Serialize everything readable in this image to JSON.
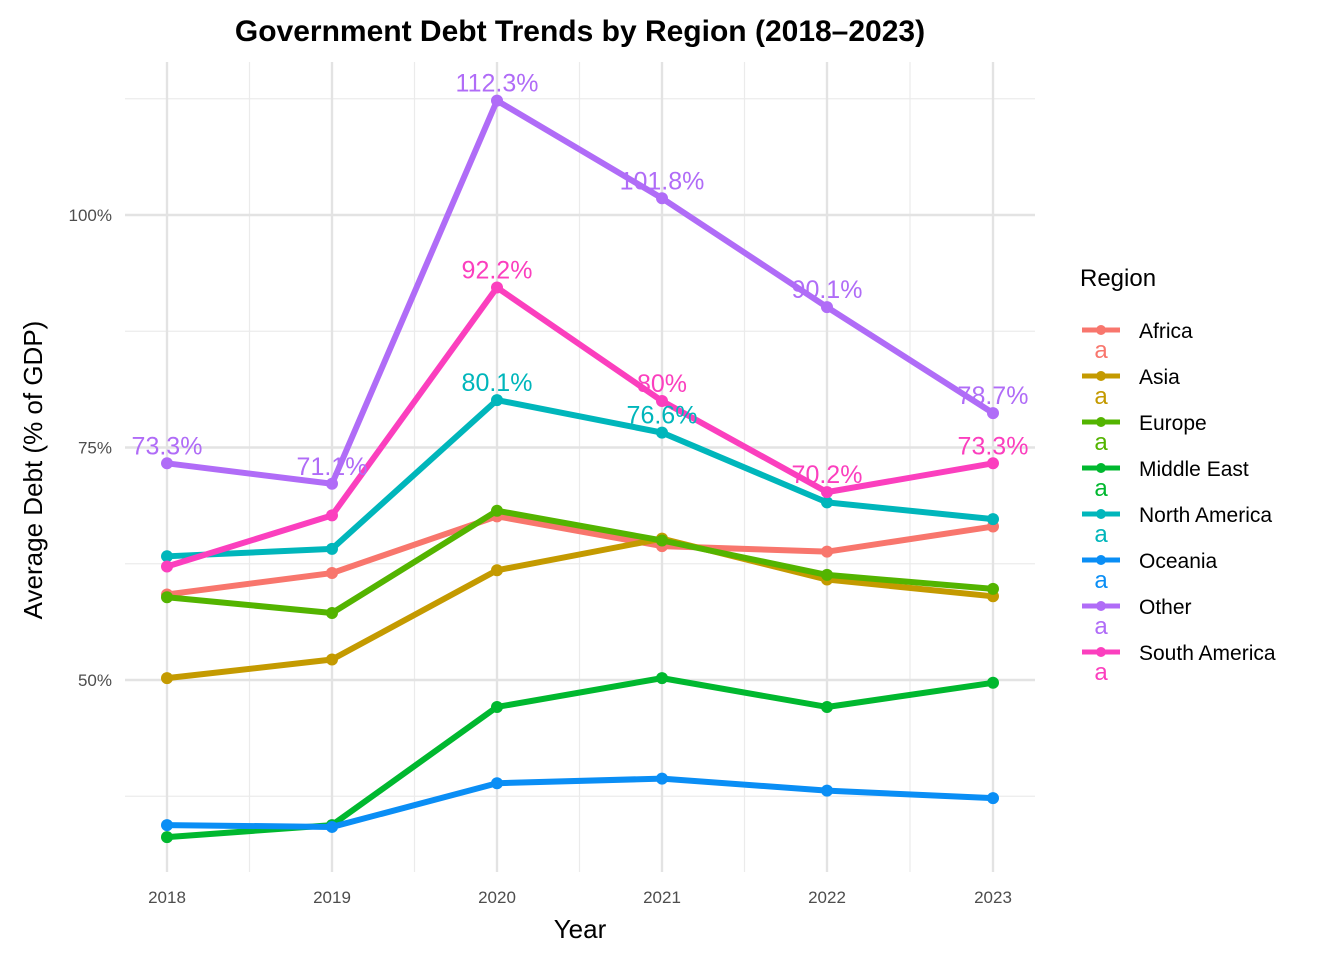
{
  "chart_data": {
    "type": "line",
    "title": "Government Debt Trends by Region (2018–2023)",
    "xlabel": "Year",
    "ylabel": "Average Debt (% of GDP)",
    "x": [
      2018,
      2019,
      2020,
      2021,
      2022,
      2023
    ],
    "x_tick_labels": [
      "2018",
      "2019",
      "2020",
      "2021",
      "2022",
      "2023"
    ],
    "ylim": [
      29,
      117
    ],
    "y_ticks": [
      50,
      75,
      100
    ],
    "y_tick_labels": [
      "50%",
      "75%",
      "100%"
    ],
    "grid": true,
    "legend": {
      "title": "Region",
      "position": "right",
      "key_glyph": "a"
    },
    "series": [
      {
        "name": "Africa",
        "color": "#F8766D",
        "values": [
          59.2,
          61.5,
          67.6,
          64.4,
          63.8,
          66.5
        ]
      },
      {
        "name": "Asia",
        "color": "#C49A00",
        "values": [
          50.2,
          52.2,
          61.8,
          65.2,
          60.8,
          59.0
        ]
      },
      {
        "name": "Europe",
        "color": "#53B400",
        "values": [
          58.9,
          57.2,
          68.2,
          65.0,
          61.3,
          59.8
        ]
      },
      {
        "name": "Middle East",
        "color": "#00B82F",
        "values": [
          33.1,
          34.4,
          47.1,
          50.2,
          47.1,
          49.7
        ]
      },
      {
        "name": "North America",
        "color": "#00B6BB",
        "values": [
          63.3,
          64.1,
          80.1,
          76.6,
          69.1,
          67.3
        ]
      },
      {
        "name": "Oceania",
        "color": "#0A8EF5",
        "values": [
          34.4,
          34.2,
          38.9,
          39.4,
          38.1,
          37.3
        ]
      },
      {
        "name": "Other",
        "color": "#B06CF7",
        "values": [
          73.3,
          71.1,
          112.3,
          101.8,
          90.1,
          78.7
        ],
        "labels": [
          "73.3%",
          "71.1%",
          "112.3%",
          "101.8%",
          "90.1%",
          "78.7%"
        ]
      },
      {
        "name": "South America",
        "color": "#FB3FBE",
        "values": [
          62.2,
          67.7,
          92.2,
          80.0,
          70.2,
          73.3
        ],
        "labels": [
          "",
          "",
          "92.2%",
          "80%",
          "70.2%",
          "73.3%"
        ]
      }
    ],
    "extra_labels": [
      {
        "series": "North America",
        "x": 2020,
        "y": 80.1,
        "text": "80.1%"
      },
      {
        "series": "North America",
        "x": 2021,
        "y": 76.6,
        "text": "76.6%"
      }
    ]
  }
}
